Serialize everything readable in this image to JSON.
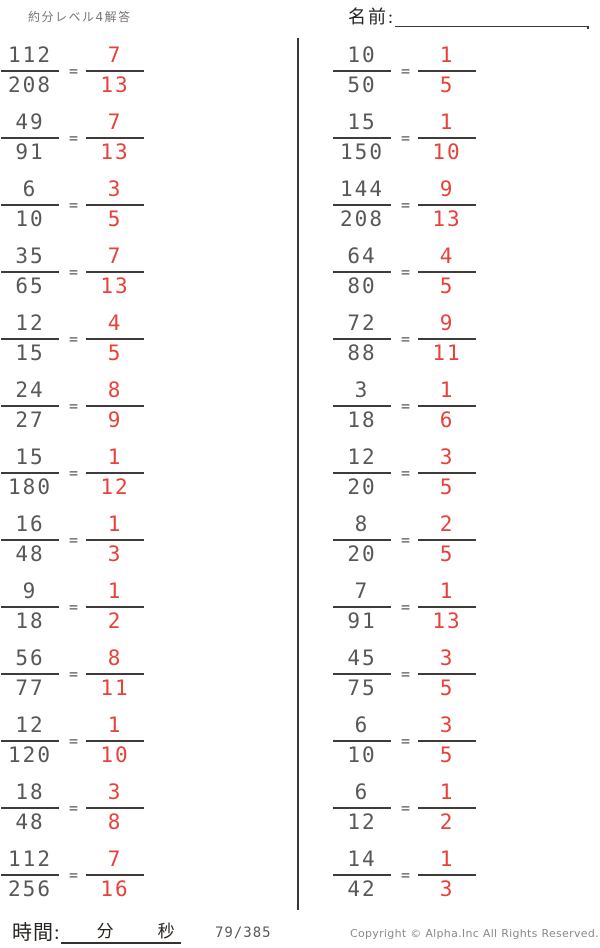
{
  "page": {
    "title": "約分レベル4解答",
    "name_label": "名前:",
    "equals_sign": "=",
    "columns": {
      "left": [
        {
          "n": "112",
          "d": "208",
          "an": "7",
          "ad": "13"
        },
        {
          "n": "49",
          "d": "91",
          "an": "7",
          "ad": "13"
        },
        {
          "n": "6",
          "d": "10",
          "an": "3",
          "ad": "5"
        },
        {
          "n": "35",
          "d": "65",
          "an": "7",
          "ad": "13"
        },
        {
          "n": "12",
          "d": "15",
          "an": "4",
          "ad": "5"
        },
        {
          "n": "24",
          "d": "27",
          "an": "8",
          "ad": "9"
        },
        {
          "n": "15",
          "d": "180",
          "an": "1",
          "ad": "12"
        },
        {
          "n": "16",
          "d": "48",
          "an": "1",
          "ad": "3"
        },
        {
          "n": "9",
          "d": "18",
          "an": "1",
          "ad": "2"
        },
        {
          "n": "56",
          "d": "77",
          "an": "8",
          "ad": "11"
        },
        {
          "n": "12",
          "d": "120",
          "an": "1",
          "ad": "10"
        },
        {
          "n": "18",
          "d": "48",
          "an": "3",
          "ad": "8"
        },
        {
          "n": "112",
          "d": "256",
          "an": "7",
          "ad": "16"
        }
      ],
      "right": [
        {
          "n": "10",
          "d": "50",
          "an": "1",
          "ad": "5"
        },
        {
          "n": "15",
          "d": "150",
          "an": "1",
          "ad": "10"
        },
        {
          "n": "144",
          "d": "208",
          "an": "9",
          "ad": "13"
        },
        {
          "n": "64",
          "d": "80",
          "an": "4",
          "ad": "5"
        },
        {
          "n": "72",
          "d": "88",
          "an": "9",
          "ad": "11"
        },
        {
          "n": "3",
          "d": "18",
          "an": "1",
          "ad": "6"
        },
        {
          "n": "12",
          "d": "20",
          "an": "3",
          "ad": "5"
        },
        {
          "n": "8",
          "d": "20",
          "an": "2",
          "ad": "5"
        },
        {
          "n": "7",
          "d": "91",
          "an": "1",
          "ad": "13"
        },
        {
          "n": "45",
          "d": "75",
          "an": "3",
          "ad": "5"
        },
        {
          "n": "6",
          "d": "10",
          "an": "3",
          "ad": "5"
        },
        {
          "n": "6",
          "d": "12",
          "an": "1",
          "ad": "2"
        },
        {
          "n": "14",
          "d": "42",
          "an": "1",
          "ad": "3"
        }
      ]
    },
    "footer": {
      "time_label": "時間:",
      "minutes_label": "分",
      "seconds_label": "秒",
      "page_indicator": "79/385",
      "copyright": "Copyright ©  Alpha.Inc All Rights Reserved."
    },
    "colors": {
      "answer_red": "#e8413a",
      "problem_gray": "#595757",
      "bar_dark": "#3f3b39"
    }
  }
}
